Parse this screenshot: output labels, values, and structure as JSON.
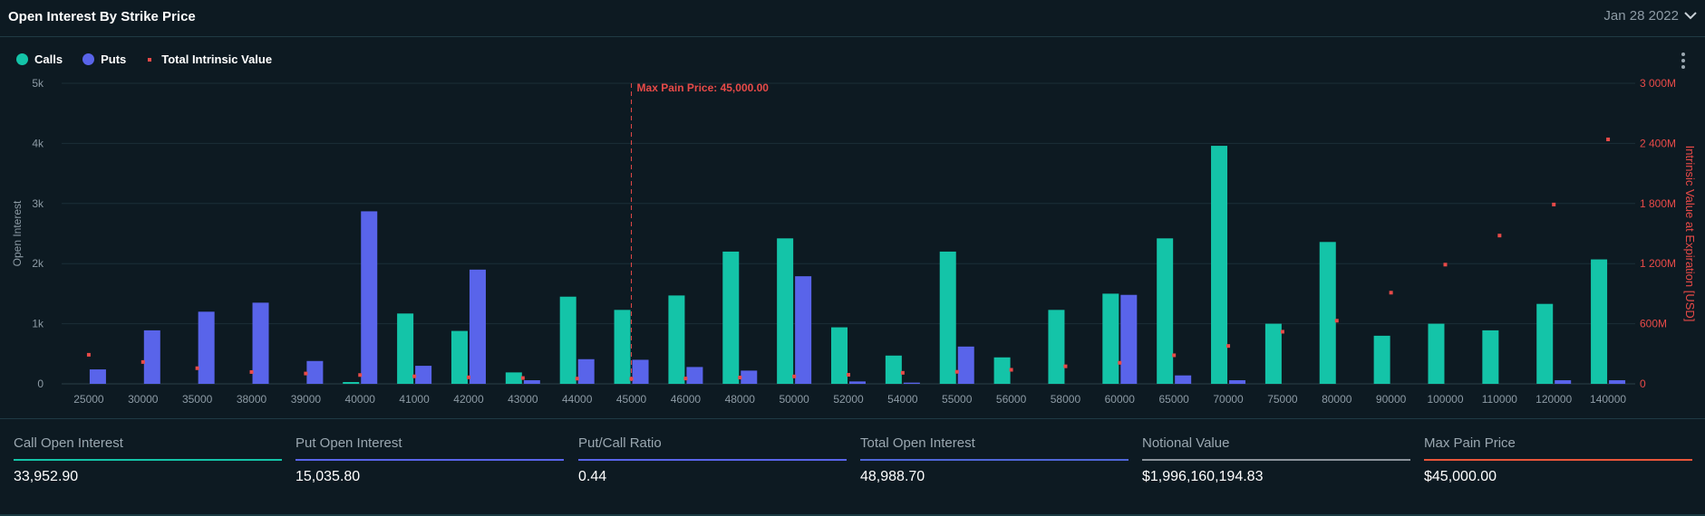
{
  "header": {
    "title": "Open Interest By Strike Price",
    "date": "Jan 28 2022"
  },
  "legend": [
    {
      "label": "Calls",
      "color": "#14c4a8",
      "shape": "circle"
    },
    {
      "label": "Puts",
      "color": "#5964ea",
      "shape": "circle"
    },
    {
      "label": "Total Intrinsic Value",
      "color": "#e84a48",
      "shape": "square"
    }
  ],
  "chart_data": {
    "type": "bar",
    "categories": [
      "25000",
      "30000",
      "35000",
      "38000",
      "39000",
      "40000",
      "41000",
      "42000",
      "43000",
      "44000",
      "45000",
      "46000",
      "48000",
      "50000",
      "52000",
      "54000",
      "55000",
      "56000",
      "58000",
      "60000",
      "65000",
      "70000",
      "75000",
      "80000",
      "90000",
      "100000",
      "110000",
      "120000",
      "140000"
    ],
    "series": [
      {
        "name": "Calls",
        "type": "bar",
        "axis": "left",
        "color": "#14c4a8",
        "values": [
          0,
          0,
          0,
          0,
          0,
          30,
          1170,
          880,
          190,
          1450,
          1230,
          1470,
          2200,
          2420,
          940,
          470,
          2200,
          440,
          1230,
          1500,
          2420,
          3960,
          1000,
          2360,
          800,
          1000,
          890,
          1330,
          2070
        ]
      },
      {
        "name": "Puts",
        "type": "bar",
        "axis": "left",
        "color": "#5964ea",
        "values": [
          240,
          890,
          1200,
          1350,
          380,
          2870,
          300,
          1900,
          60,
          410,
          400,
          280,
          220,
          1790,
          40,
          20,
          620,
          0,
          0,
          1480,
          140,
          60,
          0,
          0,
          0,
          0,
          0,
          60,
          60
        ]
      },
      {
        "name": "Total Intrinsic Value",
        "type": "scatter",
        "axis": "right",
        "color": "#e84a48",
        "values": [
          290000000,
          218000000,
          156000000,
          118000000,
          103000000,
          88000000,
          75000000,
          65000000,
          58000000,
          52000000,
          50000000,
          53000000,
          63000000,
          74000000,
          90000000,
          110000000,
          120000000,
          140000000,
          175000000,
          210000000,
          285000000,
          378000000,
          520000000,
          630000000,
          910000000,
          1190000000,
          1480000000,
          1790000000,
          2440000000
        ]
      }
    ],
    "ylabel": "Open Interest",
    "ylim": [
      0,
      5000
    ],
    "yticks": [
      "0",
      "1k",
      "2k",
      "3k",
      "4k",
      "5k"
    ],
    "y2label": "Intrinsic Value at Expiration [USD]",
    "y2lim": [
      0,
      3000000000
    ],
    "y2ticks": [
      "0",
      "600M",
      "1 200M",
      "1 800M",
      "2 400M",
      "3 000M"
    ],
    "annotation": {
      "label": "Max Pain Price: 45,000.00",
      "category": "45000",
      "color": "#e84a48"
    },
    "grid": true
  },
  "stats": [
    {
      "label": "Call Open Interest",
      "value": "33,952.90",
      "color": "#14c4a8"
    },
    {
      "label": "Put Open Interest",
      "value": "15,035.80",
      "color": "#5964ea"
    },
    {
      "label": "Put/Call Ratio",
      "value": "0.44",
      "color": "#5964ea"
    },
    {
      "label": "Total Open Interest",
      "value": "48,988.70",
      "color": "#4f66d8"
    },
    {
      "label": "Notional Value",
      "value": "$1,996,160,194.83",
      "color": "#8a929a"
    },
    {
      "label": "Max Pain Price",
      "value": "$45,000.00",
      "color": "#e8553a"
    }
  ]
}
